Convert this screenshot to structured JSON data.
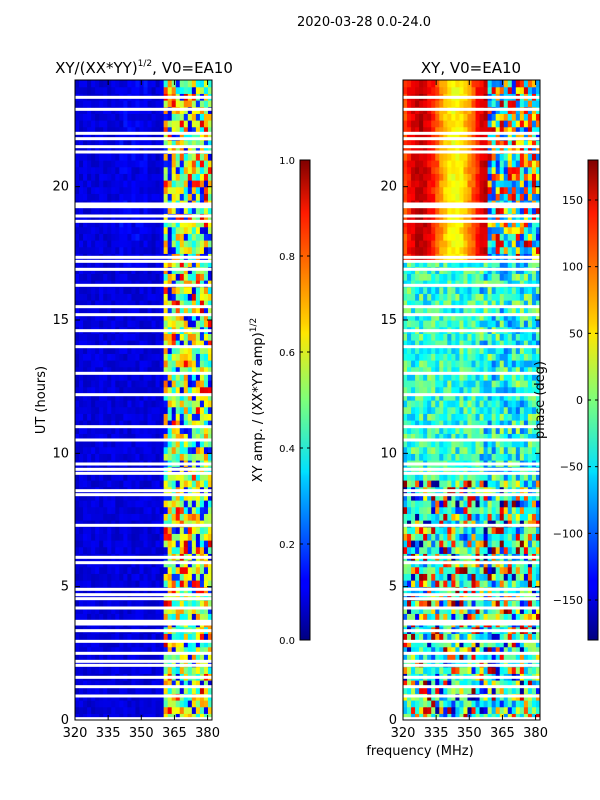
{
  "figure_title": "2020-03-28 0.0-24.0",
  "shared_xlabel": "frequency (MHz)",
  "chart_data": [
    {
      "type": "heatmap",
      "title_main": "XY/(XX*YY)",
      "title_sup": "1/2",
      "title_tail": ", V0=EA10",
      "xlabel": "",
      "ylabel": "UT (hours)",
      "xlim": [
        320,
        382
      ],
      "ylim": [
        0,
        24
      ],
      "xticks": [
        320,
        335,
        350,
        365,
        380
      ],
      "yticks": [
        0,
        5,
        10,
        15,
        20
      ],
      "colorbar": {
        "label": "XY amp. / (XX*YY amp)",
        "label_sup": "1/2",
        "range": [
          0.0,
          1.0
        ],
        "ticks": [
          "0.0",
          "0.2",
          "0.4",
          "0.6",
          "0.8",
          "1.0"
        ],
        "colormap": "jet"
      },
      "gap_hours": [
        0.05,
        0.9,
        1.25,
        1.6,
        2.05,
        2.2,
        2.5,
        2.95,
        3.35,
        3.6,
        3.7,
        4.2,
        4.55,
        4.7,
        4.9,
        5.9,
        6.1,
        7.3,
        8.45,
        8.6,
        9.25,
        9.4,
        9.6,
        10.5,
        11.0,
        12.2,
        13.0,
        14.0,
        14.6,
        15.2,
        15.5,
        16.3,
        16.9,
        17.2,
        17.35,
        18.7,
        18.9,
        19.25,
        19.35,
        21.3,
        21.5,
        21.8,
        22.0,
        22.9,
        23.35
      ]
    },
    {
      "type": "heatmap",
      "title_main": "XY, V0=EA10",
      "title_sup": "",
      "title_tail": "",
      "xlabel": "frequency (MHz)",
      "ylabel": "",
      "xlim": [
        320,
        382
      ],
      "ylim": [
        0,
        24
      ],
      "xticks": [
        320,
        335,
        350,
        365,
        380
      ],
      "yticks": [
        0,
        5,
        10,
        15,
        20
      ],
      "colorbar": {
        "label": "phase (deg)",
        "label_sup": "",
        "range": [
          -180,
          180
        ],
        "ticks": [
          "−150",
          "−100",
          "−50",
          "0",
          "50",
          "100",
          "150"
        ],
        "colormap": "jet"
      },
      "gap_hours": [
        0.05,
        0.9,
        1.25,
        1.6,
        2.05,
        2.2,
        2.5,
        2.95,
        3.35,
        3.6,
        3.7,
        4.2,
        4.55,
        4.7,
        4.9,
        5.9,
        6.1,
        7.3,
        8.45,
        8.6,
        9.25,
        9.4,
        9.6,
        10.5,
        11.0,
        12.2,
        13.0,
        14.0,
        14.6,
        15.2,
        15.5,
        16.3,
        16.9,
        17.2,
        17.35,
        18.7,
        18.9,
        19.25,
        19.35,
        21.3,
        21.5,
        21.8,
        22.0,
        22.9,
        23.35
      ]
    }
  ]
}
